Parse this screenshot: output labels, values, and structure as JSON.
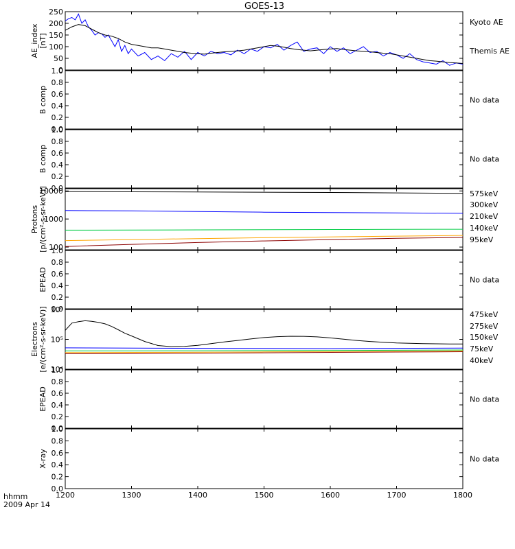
{
  "chart_data": {
    "type": "line",
    "title": "GOES-13",
    "xaxis": {
      "range": [
        1200,
        1800
      ],
      "ticks": [
        "1200",
        "1300",
        "1400",
        "1500",
        "1600",
        "1700",
        "1800"
      ],
      "label_line1": "hhmm",
      "label_line2": "2009 Apr 14"
    },
    "panels": [
      {
        "key": "ae",
        "ylabel_lines": [
          "AE_index",
          "[nT]"
        ],
        "yscale": "linear",
        "ylim": [
          0,
          250
        ],
        "yticks": [
          "0",
          "50",
          "100",
          "150",
          "200",
          "250"
        ],
        "legend": [
          {
            "text": "Kyoto AE",
            "color": "#0000ff"
          },
          {
            "text": "Themis AE",
            "color": "#000000"
          }
        ],
        "series": [
          {
            "name": "Kyoto AE",
            "color": "#0000ff",
            "x": [
              1200,
              1205,
              1210,
              1215,
              1220,
              1225,
              1230,
              1235,
              1240,
              1245,
              1250,
              1255,
              1260,
              1265,
              1270,
              1275,
              1280,
              1285,
              1290,
              1295,
              1300,
              1310,
              1320,
              1330,
              1340,
              1350,
              1360,
              1370,
              1380,
              1390,
              1400,
              1410,
              1420,
              1430,
              1440,
              1450,
              1460,
              1470,
              1480,
              1490,
              1500,
              1510,
              1520,
              1530,
              1540,
              1550,
              1560,
              1570,
              1580,
              1590,
              1600,
              1610,
              1620,
              1630,
              1640,
              1650,
              1660,
              1670,
              1680,
              1690,
              1700,
              1710,
              1720,
              1730,
              1740,
              1750,
              1760,
              1770,
              1780,
              1790,
              1800
            ],
            "y": [
              210,
              220,
              225,
              215,
              240,
              200,
              215,
              185,
              170,
              150,
              160,
              155,
              140,
              150,
              125,
              100,
              130,
              80,
              105,
              70,
              90,
              60,
              75,
              45,
              60,
              40,
              70,
              55,
              80,
              45,
              75,
              60,
              80,
              70,
              75,
              65,
              85,
              70,
              90,
              80,
              100,
              95,
              110,
              85,
              105,
              120,
              80,
              90,
              95,
              70,
              100,
              80,
              95,
              70,
              85,
              100,
              75,
              80,
              60,
              75,
              65,
              50,
              70,
              45,
              35,
              30,
              25,
              40,
              20,
              30,
              25
            ]
          },
          {
            "name": "Themis AE",
            "color": "#000000",
            "x": [
              1200,
              1210,
              1220,
              1230,
              1240,
              1250,
              1260,
              1270,
              1280,
              1290,
              1300,
              1310,
              1320,
              1330,
              1340,
              1350,
              1360,
              1370,
              1380,
              1390,
              1400,
              1410,
              1420,
              1430,
              1440,
              1450,
              1460,
              1470,
              1480,
              1490,
              1500,
              1510,
              1520,
              1530,
              1540,
              1550,
              1560,
              1570,
              1580,
              1590,
              1600,
              1610,
              1620,
              1630,
              1640,
              1650,
              1660,
              1670,
              1680,
              1690,
              1700,
              1710,
              1720,
              1730,
              1740,
              1750,
              1760,
              1770,
              1780,
              1790,
              1800
            ],
            "y": [
              170,
              185,
              195,
              190,
              175,
              160,
              150,
              145,
              135,
              120,
              110,
              105,
              100,
              95,
              95,
              90,
              85,
              80,
              75,
              72,
              70,
              68,
              72,
              75,
              78,
              80,
              82,
              85,
              90,
              95,
              100,
              105,
              102,
              98,
              92,
              88,
              85,
              82,
              85,
              88,
              90,
              92,
              88,
              85,
              82,
              80,
              78,
              75,
              72,
              70,
              65,
              60,
              55,
              50,
              45,
              40,
              38,
              35,
              32,
              30,
              28
            ]
          }
        ]
      },
      {
        "key": "b1",
        "ylabel_lines": [
          "B comp"
        ],
        "yscale": "linear",
        "ylim": [
          0,
          1
        ],
        "yticks": [
          "0.0",
          "0.2",
          "0.4",
          "0.6",
          "0.8",
          "1.0"
        ],
        "nodata": "No data"
      },
      {
        "key": "b2",
        "ylabel_lines": [
          "B comp"
        ],
        "yscale": "linear",
        "ylim": [
          0,
          1
        ],
        "yticks": [
          "0.0",
          "0.2",
          "0.4",
          "0.6",
          "0.8",
          "1.0"
        ],
        "nodata": "No data"
      },
      {
        "key": "protons",
        "ylabel_lines": [
          "Protons",
          "[p/(cm²-s-sr-keV)]"
        ],
        "yscale": "log",
        "ylim": [
          80,
          12000
        ],
        "ytick_values": [
          100,
          1000,
          10000
        ],
        "yticks": [
          "100",
          "1000",
          "10000"
        ],
        "legend": [
          {
            "text": "575keV",
            "color": "#8b0000"
          },
          {
            "text": "300keV",
            "color": "#ffa500"
          },
          {
            "text": "210keV",
            "color": "#00cc44"
          },
          {
            "text": "140keV",
            "color": "#0000ff"
          },
          {
            "text": "95keV",
            "color": "#000000"
          }
        ],
        "series": [
          {
            "name": "95keV",
            "color": "#000000",
            "x": [
              1200,
              1300,
              1400,
              1500,
              1600,
              1700,
              1800
            ],
            "y": [
              9500,
              9300,
              9200,
              9000,
              8800,
              8500,
              8200
            ]
          },
          {
            "name": "140keV",
            "color": "#0000ff",
            "x": [
              1200,
              1300,
              1400,
              1500,
              1600,
              1700,
              1800
            ],
            "y": [
              2000,
              1950,
              1850,
              1750,
              1700,
              1650,
              1600
            ]
          },
          {
            "name": "210keV",
            "color": "#00cc44",
            "x": [
              1200,
              1300,
              1400,
              1500,
              1600,
              1700,
              1800
            ],
            "y": [
              400,
              405,
              410,
              415,
              420,
              425,
              430
            ]
          },
          {
            "name": "300keV",
            "color": "#ffa500",
            "x": [
              1200,
              1300,
              1400,
              1500,
              1600,
              1700,
              1800
            ],
            "y": [
              170,
              185,
              200,
              215,
              230,
              245,
              260
            ]
          },
          {
            "name": "575keV",
            "color": "#8b0000",
            "x": [
              1200,
              1300,
              1400,
              1500,
              1600,
              1700,
              1800
            ],
            "y": [
              105,
              125,
              145,
              165,
              185,
              205,
              220
            ]
          }
        ]
      },
      {
        "key": "epead1",
        "ylabel_lines": [
          "EPEAD"
        ],
        "yscale": "linear",
        "ylim": [
          0,
          1
        ],
        "yticks": [
          "0.0",
          "0.2",
          "0.4",
          "0.6",
          "0.8",
          "1.0"
        ],
        "nodata": "No data"
      },
      {
        "key": "electrons",
        "ylabel_lines": [
          "Electrons",
          "[e/(cm²-s-sr-keV)]"
        ],
        "yscale": "log",
        "ylim": [
          10000,
          1000000
        ],
        "ytick_values": [
          10000,
          100000,
          1000000
        ],
        "yticks": [
          "10⁴",
          "10⁵",
          "10⁶"
        ],
        "legend": [
          {
            "text": "475keV",
            "color": "#8b0000"
          },
          {
            "text": "275keV",
            "color": "#ffa500"
          },
          {
            "text": "150keV",
            "color": "#00cc44"
          },
          {
            "text": "75keV",
            "color": "#0000ff"
          },
          {
            "text": "40keV",
            "color": "#000000"
          }
        ],
        "series": [
          {
            "name": "40keV",
            "color": "#000000",
            "x": [
              1200,
              1210,
              1220,
              1230,
              1240,
              1250,
              1260,
              1270,
              1280,
              1290,
              1300,
              1320,
              1340,
              1360,
              1380,
              1400,
              1420,
              1440,
              1460,
              1480,
              1500,
              1520,
              1540,
              1560,
              1580,
              1600,
              1620,
              1640,
              1660,
              1680,
              1700,
              1720,
              1740,
              1760,
              1780,
              1800
            ],
            "y": [
              200000,
              350000,
              390000,
              420000,
              400000,
              370000,
              330000,
              270000,
              210000,
              160000,
              130000,
              85000,
              62000,
              57000,
              58000,
              63000,
              72000,
              82000,
              92000,
              103000,
              115000,
              123000,
              127000,
              126000,
              121000,
              112000,
              101000,
              92000,
              85000,
              80000,
              76000,
              74000,
              72000,
              71000,
              70000,
              70000
            ]
          },
          {
            "name": "75keV",
            "color": "#0000ff",
            "x": [
              1200,
              1300,
              1400,
              1500,
              1600,
              1700,
              1800
            ],
            "y": [
              52000,
              51000,
              50000,
              49500,
              49000,
              50000,
              51000
            ]
          },
          {
            "name": "150keV",
            "color": "#00cc44",
            "x": [
              1200,
              1300,
              1400,
              1500,
              1600,
              1700,
              1800
            ],
            "y": [
              41000,
              41000,
              41500,
              42000,
              42500,
              43000,
              44000
            ]
          },
          {
            "name": "275keV",
            "color": "#ffa500",
            "x": [
              1200,
              1300,
              1400,
              1500,
              1600,
              1700,
              1800
            ],
            "y": [
              36000,
              36500,
              37000,
              38000,
              39000,
              40000,
              41000
            ]
          },
          {
            "name": "475keV",
            "color": "#8b0000",
            "x": [
              1200,
              1300,
              1400,
              1500,
              1600,
              1700,
              1800
            ],
            "y": [
              33000,
              33500,
              34500,
              35500,
              36500,
              37500,
              38500
            ]
          }
        ]
      },
      {
        "key": "epead2",
        "ylabel_lines": [
          "EPEAD"
        ],
        "yscale": "linear",
        "ylim": [
          0,
          1
        ],
        "yticks": [
          "0.0",
          "0.2",
          "0.4",
          "0.6",
          "0.8",
          "1.0"
        ],
        "nodata": "No data"
      },
      {
        "key": "xray",
        "ylabel_lines": [
          "X-ray"
        ],
        "yscale": "linear",
        "ylim": [
          0,
          1
        ],
        "yticks": [
          "0.0",
          "0.2",
          "0.4",
          "0.6",
          "0.8",
          "1.0"
        ],
        "nodata": "No data"
      }
    ]
  }
}
